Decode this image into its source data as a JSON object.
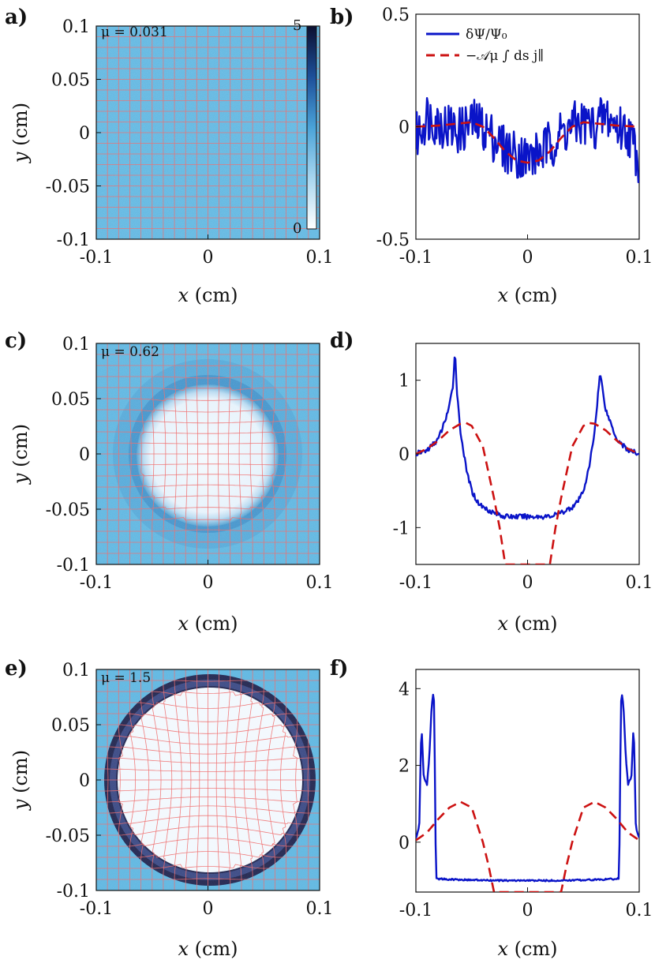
{
  "figure": {
    "panel_labels": [
      "a)",
      "b)",
      "c)",
      "d)",
      "e)",
      "f)"
    ],
    "map_axes": {
      "x_ticks": [
        "-0.1",
        "0",
        "0.1"
      ],
      "y_ticks": [
        "0.1",
        "0.05",
        "0",
        "-0.05",
        "-0.1"
      ],
      "xlabel_var": "x",
      "xlabel_unit": " (cm)",
      "ylabel_var": "y",
      "ylabel_unit": " (cm)"
    },
    "profile_xlabel_var": "x",
    "profile_xlabel_unit": " (cm)",
    "colorbar": {
      "min_label": "0",
      "max_label": "5",
      "min": 0,
      "max": 5
    },
    "legend": {
      "series1": "δΨ/Ψ₀",
      "series2": "−𝒜μ ∫ ds j∥"
    },
    "colors": {
      "blue_line": "#0a14c8",
      "red_dash": "#cc1111",
      "map_background": "#5ab4e0",
      "grid": "#f07070",
      "ring_dark": "#1a1f4a"
    }
  },
  "chart_data": [
    {
      "panel": "a)",
      "type": "heatmap",
      "mu_label": "μ = 0.031",
      "mu": 0.031,
      "xlim": [
        -0.1,
        0.1
      ],
      "ylim": [
        -0.1,
        0.1
      ],
      "xlabel": "x (cm)",
      "ylabel": "y (cm)",
      "depleted_radius": 0,
      "ring_outer": 0,
      "ring_strength": 0
    },
    {
      "panel": "b)",
      "type": "line",
      "xlim": [
        -0.1,
        0.1
      ],
      "ylim": [
        -0.5,
        0.5
      ],
      "y_ticks": [
        "0.5",
        "0",
        "-0.5"
      ],
      "y_tick_values": [
        0.5,
        0,
        -0.5
      ],
      "x_ticks": [
        "-0.1",
        "0",
        "0.1"
      ],
      "xlabel": "x (cm)",
      "series": [
        {
          "name": "δΨ/Ψ₀",
          "style": "solid",
          "x": [
            -0.1,
            -0.09,
            -0.08,
            -0.07,
            -0.06,
            -0.05,
            -0.04,
            -0.03,
            -0.02,
            -0.01,
            0,
            0.01,
            0.02,
            0.03,
            0.04,
            0.05,
            0.06,
            0.07,
            0.08,
            0.09,
            0.1
          ],
          "y": [
            -0.05,
            0.05,
            0.02,
            0.0,
            -0.02,
            0.02,
            0.0,
            -0.05,
            -0.1,
            -0.12,
            -0.14,
            -0.12,
            -0.08,
            -0.03,
            0.0,
            0.02,
            0.0,
            0.05,
            0.0,
            -0.02,
            -0.15
          ]
        },
        {
          "name": "−𝒜μ ∫ ds j∥",
          "style": "dashed",
          "x": [
            -0.1,
            -0.08,
            -0.06,
            -0.05,
            -0.04,
            -0.03,
            -0.02,
            -0.01,
            0,
            0.01,
            0.02,
            0.03,
            0.04,
            0.05,
            0.06,
            0.08,
            0.1
          ],
          "y": [
            0.0,
            0.005,
            0.015,
            0.02,
            0.0,
            -0.05,
            -0.11,
            -0.15,
            -0.16,
            -0.15,
            -0.11,
            -0.05,
            0.0,
            0.02,
            0.015,
            0.005,
            0.0
          ]
        }
      ]
    },
    {
      "panel": "c)",
      "type": "heatmap",
      "mu_label": "μ = 0.62",
      "mu": 0.62,
      "xlim": [
        -0.1,
        0.1
      ],
      "ylim": [
        -0.1,
        0.1
      ],
      "xlabel": "x (cm)",
      "ylabel": "y (cm)",
      "depleted_radius": 0.063,
      "ring_outer": 0.085,
      "ring_strength": 0.35
    },
    {
      "panel": "d)",
      "type": "line",
      "xlim": [
        -0.1,
        0.1
      ],
      "ylim": [
        -1.5,
        1.5
      ],
      "y_ticks": [
        "1",
        "0",
        "-1"
      ],
      "y_tick_values": [
        1,
        0,
        -1
      ],
      "x_ticks": [
        "-0.1",
        "0",
        "0.1"
      ],
      "xlabel": "x (cm)",
      "series": [
        {
          "name": "δΨ/Ψ₀",
          "style": "solid",
          "x": [
            -0.1,
            -0.09,
            -0.08,
            -0.075,
            -0.07,
            -0.067,
            -0.065,
            -0.063,
            -0.06,
            -0.055,
            -0.05,
            -0.045,
            -0.04,
            -0.03,
            -0.02,
            0,
            0.02,
            0.03,
            0.04,
            0.045,
            0.05,
            0.055,
            0.06,
            0.063,
            0.065,
            0.067,
            0.07,
            0.075,
            0.08,
            0.09,
            0.1
          ],
          "y": [
            0.0,
            0.05,
            0.2,
            0.4,
            0.65,
            0.9,
            1.4,
            0.8,
            0.3,
            -0.2,
            -0.5,
            -0.65,
            -0.72,
            -0.8,
            -0.85,
            -0.85,
            -0.85,
            -0.8,
            -0.72,
            -0.65,
            -0.5,
            -0.2,
            0.3,
            0.8,
            1.1,
            0.9,
            0.6,
            0.4,
            0.2,
            0.05,
            0.0
          ]
        },
        {
          "name": "−𝒜μ ∫ ds j∥",
          "style": "dashed",
          "x": [
            -0.1,
            -0.09,
            -0.08,
            -0.07,
            -0.06,
            -0.055,
            -0.05,
            -0.04,
            -0.03,
            -0.025,
            -0.02,
            0.02,
            0.025,
            0.03,
            0.04,
            0.05,
            0.055,
            0.06,
            0.07,
            0.08,
            0.09,
            0.1
          ],
          "y": [
            0.0,
            0.07,
            0.18,
            0.32,
            0.41,
            0.42,
            0.38,
            0.1,
            -0.6,
            -1.0,
            -1.5,
            -1.5,
            -1.0,
            -0.6,
            0.1,
            0.38,
            0.42,
            0.41,
            0.32,
            0.18,
            0.07,
            0.0
          ]
        }
      ]
    },
    {
      "panel": "e)",
      "type": "heatmap",
      "mu_label": "μ = 1.5",
      "mu": 1.5,
      "xlim": [
        -0.1,
        0.1
      ],
      "ylim": [
        -0.1,
        0.1
      ],
      "xlabel": "x (cm)",
      "ylabel": "y (cm)",
      "depleted_radius": 0.083,
      "ring_outer": 0.094,
      "ring_strength": 1.0
    },
    {
      "panel": "f)",
      "type": "line",
      "xlim": [
        -0.1,
        0.1
      ],
      "ylim": [
        -1.3,
        4.5
      ],
      "y_ticks": [
        "4",
        "2",
        "0"
      ],
      "y_tick_values": [
        4,
        2,
        0
      ],
      "x_ticks": [
        "-0.1",
        "0",
        "0.1"
      ],
      "xlabel": "x (cm)",
      "series": [
        {
          "name": "δΨ/Ψ₀",
          "style": "solid",
          "x": [
            -0.1,
            -0.097,
            -0.095,
            -0.093,
            -0.09,
            -0.088,
            -0.086,
            -0.084,
            -0.083,
            -0.082,
            -0.07,
            -0.03,
            0,
            0.03,
            0.07,
            0.082,
            0.083,
            0.084,
            0.086,
            0.088,
            0.09,
            0.093,
            0.095,
            0.097,
            0.1
          ],
          "y": [
            0.1,
            0.4,
            3.1,
            1.7,
            1.5,
            2.2,
            3.5,
            4.0,
            2.0,
            -0.95,
            -0.97,
            -1.0,
            -1.0,
            -1.0,
            -0.97,
            -0.95,
            2.0,
            4.0,
            3.5,
            2.2,
            1.5,
            1.7,
            3.1,
            0.4,
            0.1
          ]
        },
        {
          "name": "−𝒜μ ∫ ds j∥",
          "style": "dashed",
          "x": [
            -0.1,
            -0.09,
            -0.08,
            -0.07,
            -0.06,
            -0.05,
            -0.04,
            -0.035,
            -0.03,
            0.03,
            0.035,
            0.04,
            0.05,
            0.06,
            0.07,
            0.08,
            0.09,
            0.1
          ],
          "y": [
            0.05,
            0.25,
            0.6,
            0.9,
            1.05,
            0.9,
            0.0,
            -0.6,
            -1.3,
            -1.3,
            -0.6,
            0.0,
            0.9,
            1.05,
            0.9,
            0.6,
            0.25,
            0.05
          ]
        }
      ]
    }
  ]
}
